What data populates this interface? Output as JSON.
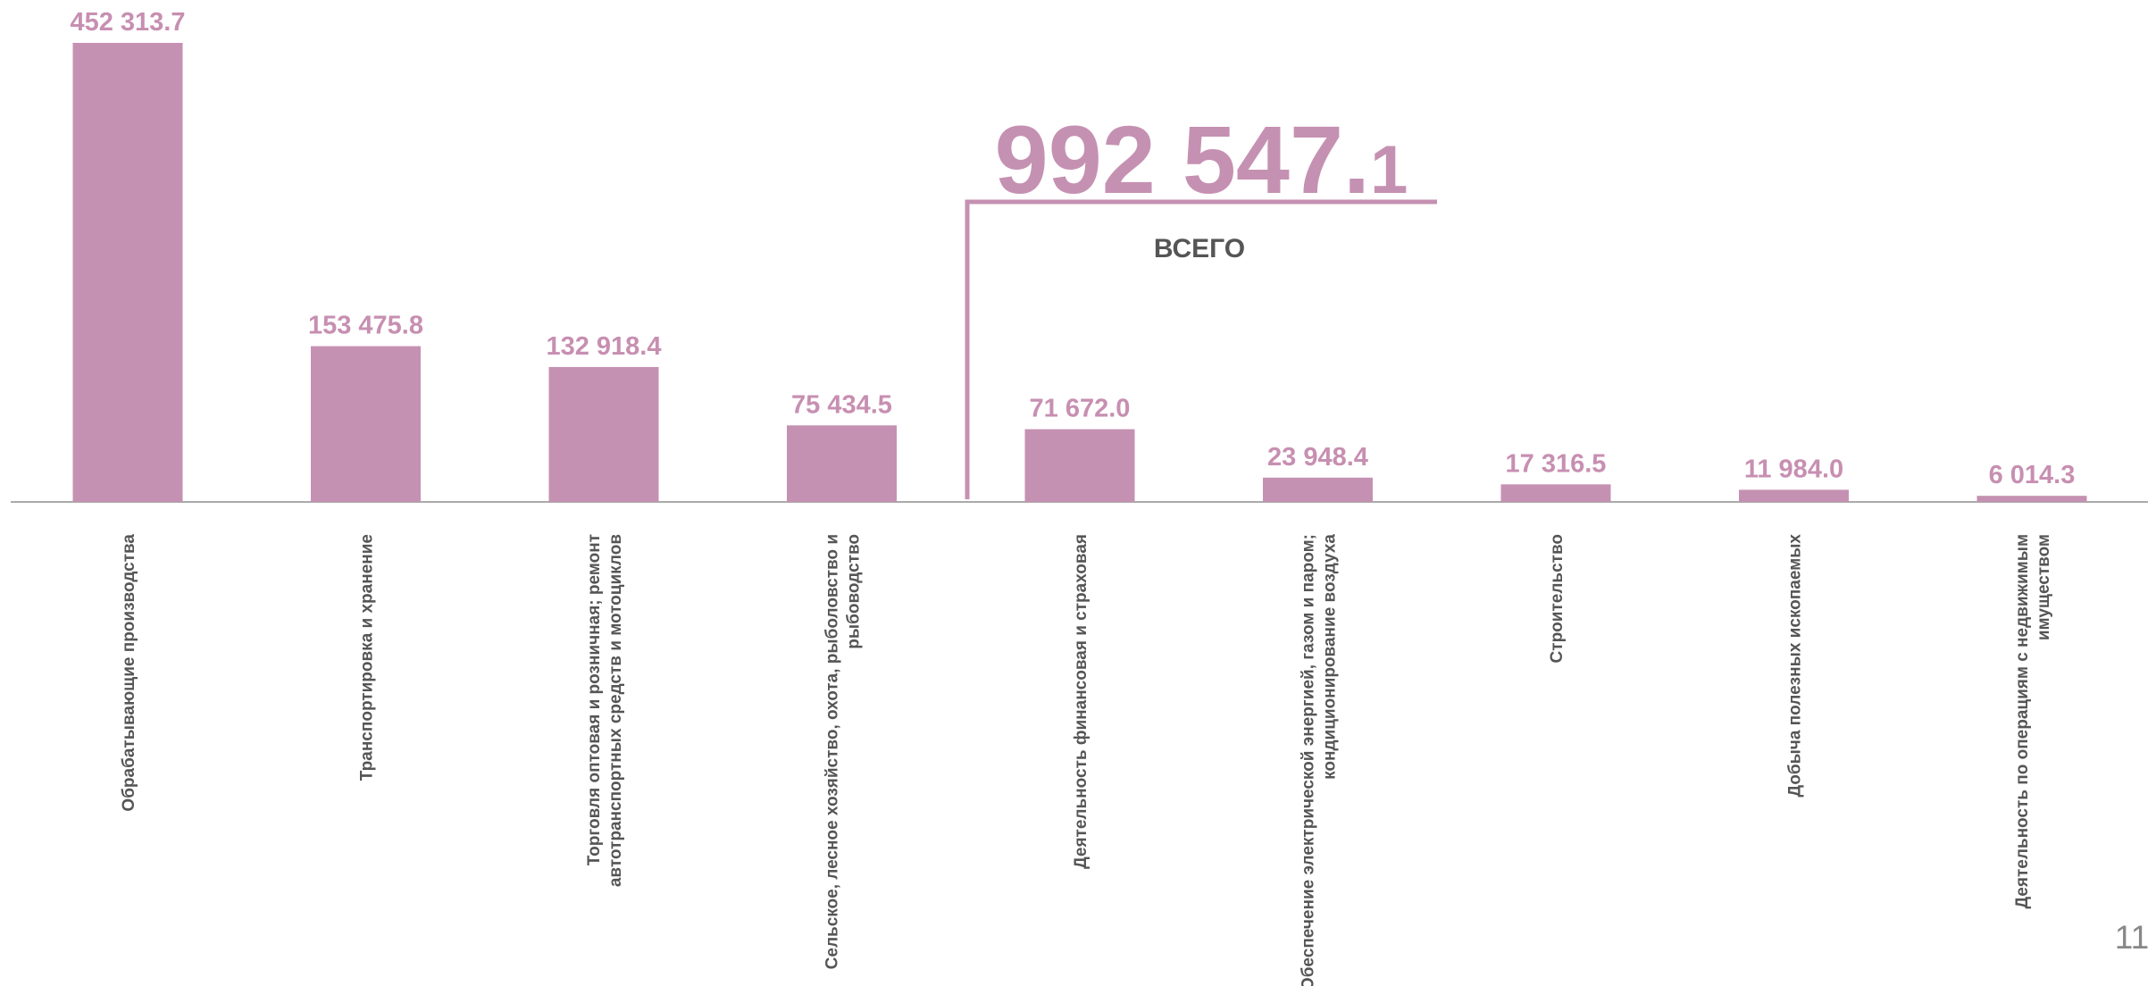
{
  "chart_data": {
    "type": "bar",
    "categories": [
      "Обрабатывающие производства",
      "Транспортировка и хранение",
      "Торговля оптовая и розничная; ремонт\nавтотранспортных средств и мотоциклов",
      "Сельское, лесное хозяйство, охота, рыболовство и\nрыбоводство",
      "Деятельность финансовая и страховая",
      "Обеспечение электрической энергией, газом и паром;\nкондиционирование воздуха",
      "Строительство",
      "Добыча полезных ископаемых",
      "Деятельность по операциям с недвижимым\nимуществом"
    ],
    "values": [
      452313.7,
      153475.8,
      132918.4,
      75434.5,
      71672.0,
      23948.4,
      17316.5,
      11984.0,
      6014.3
    ],
    "value_labels": [
      "452 313.7",
      "153 475.8",
      "132 918.4",
      "75 434.5",
      "71 672.0",
      "23 948.4",
      "17 316.5",
      "11 984.0",
      "6 014.3"
    ],
    "color": "#c591b2",
    "total": {
      "value": 992547.1,
      "label": "992 547.1"
    },
    "total_caption": "ВСЕГО",
    "page_number": "11"
  }
}
